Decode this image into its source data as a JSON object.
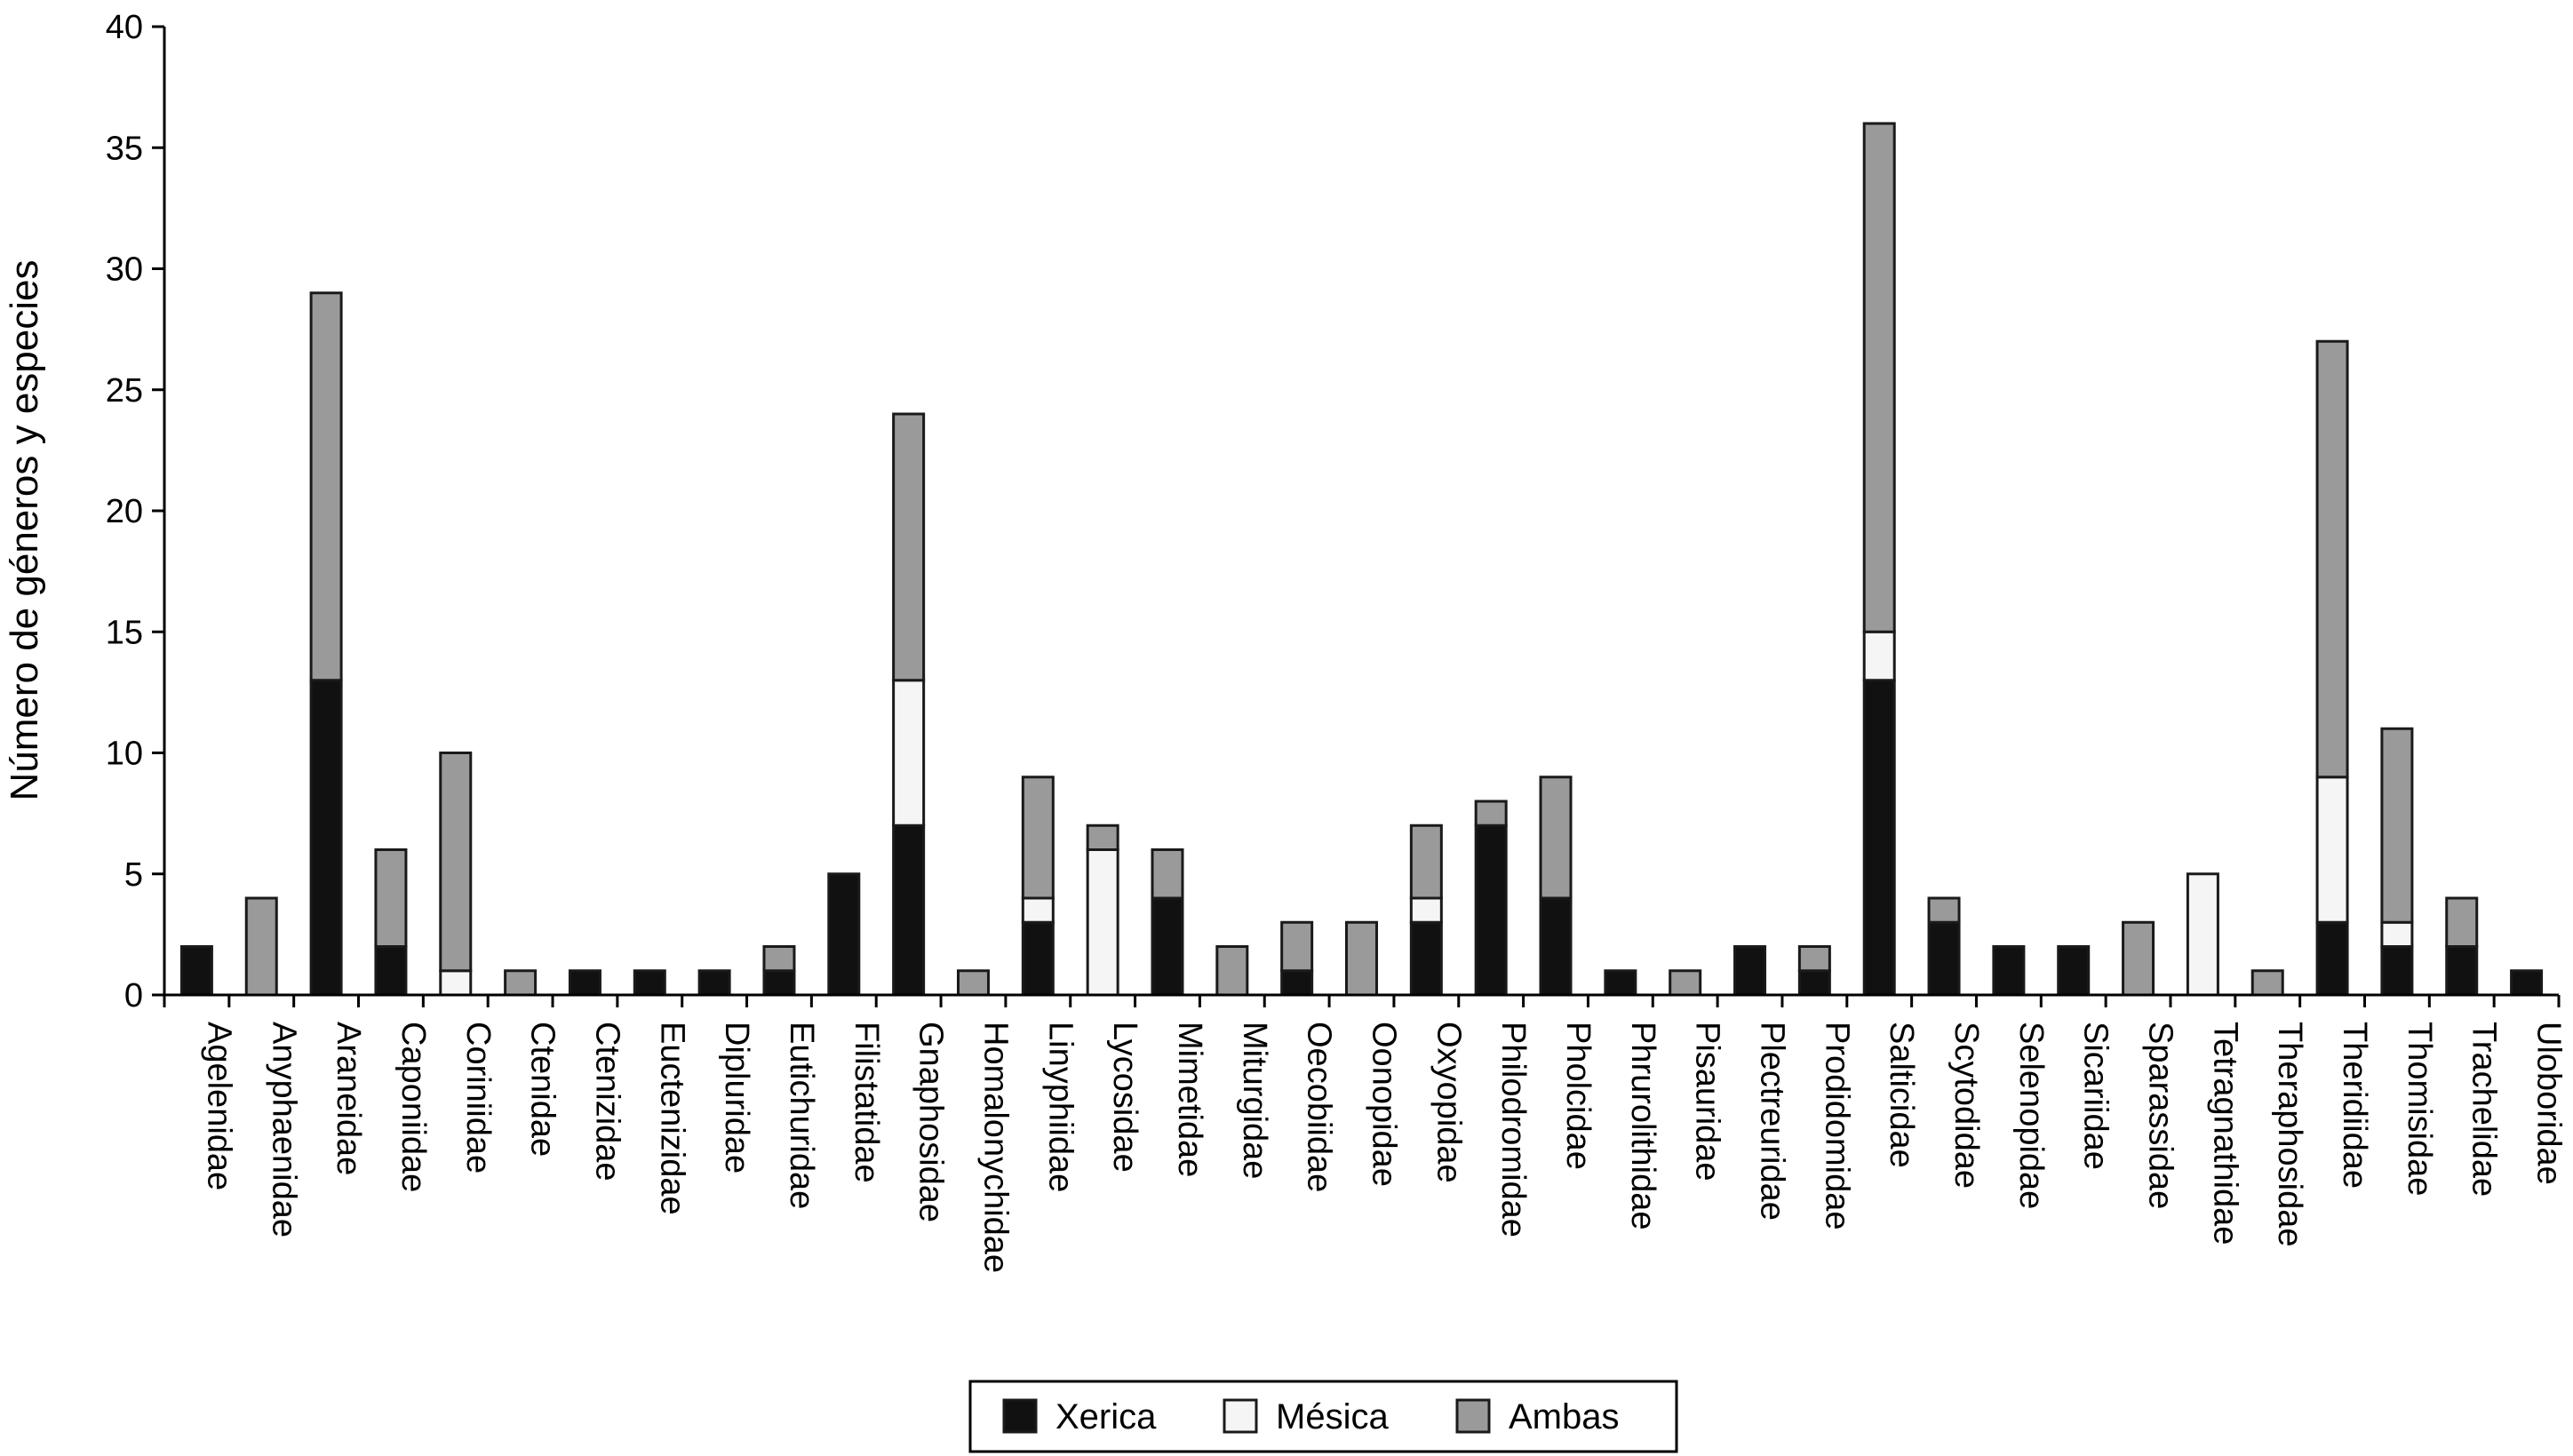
{
  "chart_data": {
    "type": "bar",
    "stacked": true,
    "title": "",
    "xlabel": "",
    "ylabel": "Número de géneros y especies",
    "ylim": [
      0,
      40
    ],
    "yticks": [
      "0",
      "5",
      "10",
      "15",
      "20",
      "25",
      "30",
      "35",
      "40"
    ],
    "legend_position": "bottom",
    "categories": [
      "Agelenidae",
      "Anyphaenidae",
      "Araneidae",
      "Caponiidae",
      "Coriniidae",
      "Ctenidae",
      "Ctenizidae",
      "Euctenizidae",
      "Dipluridae",
      "Eutichuridae",
      "Filistatidae",
      "Gnaphosidae",
      "Homalonychidae",
      "Linyphiidae",
      "Lycosidae",
      "Mimetidae",
      "Miturgidae",
      "Oecobiidae",
      "Oonopidae",
      "Oxyopidae",
      "Philodromidae",
      "Pholcidae",
      "Phrurolithidae",
      "Pisauridae",
      "Plectreuridae",
      "Prodidomidae",
      "Salticidae",
      "Scytodidae",
      "Selenopidae",
      "Sicariidae",
      "Sparassidae",
      "Tetragnathidae",
      "Theraphosidae",
      "Theridiidae",
      "Thomisidae",
      "Trachelidae",
      "Uloboridae"
    ],
    "series": [
      {
        "name": "Xerica",
        "color": "#111111",
        "values": [
          2,
          0,
          13,
          2,
          0,
          0,
          1,
          1,
          1,
          1,
          5,
          7,
          0,
          3,
          0,
          4,
          0,
          1,
          0,
          3,
          7,
          4,
          1,
          0,
          2,
          1,
          13,
          3,
          2,
          2,
          0,
          0,
          0,
          3,
          2,
          2,
          1
        ]
      },
      {
        "name": "Mésica",
        "color": "#f5f5f5",
        "values": [
          0,
          0,
          0,
          0,
          1,
          0,
          0,
          0,
          0,
          0,
          0,
          6,
          0,
          1,
          6,
          0,
          0,
          0,
          0,
          1,
          0,
          0,
          0,
          0,
          0,
          0,
          2,
          0,
          0,
          0,
          0,
          5,
          0,
          6,
          1,
          0,
          0
        ]
      },
      {
        "name": "Ambas",
        "color": "#9a9a9a",
        "values": [
          0,
          4,
          16,
          4,
          9,
          1,
          0,
          0,
          0,
          1,
          0,
          11,
          1,
          5,
          1,
          2,
          2,
          2,
          3,
          3,
          1,
          5,
          0,
          1,
          0,
          1,
          21,
          1,
          0,
          0,
          3,
          0,
          1,
          18,
          8,
          2,
          0
        ]
      }
    ]
  }
}
